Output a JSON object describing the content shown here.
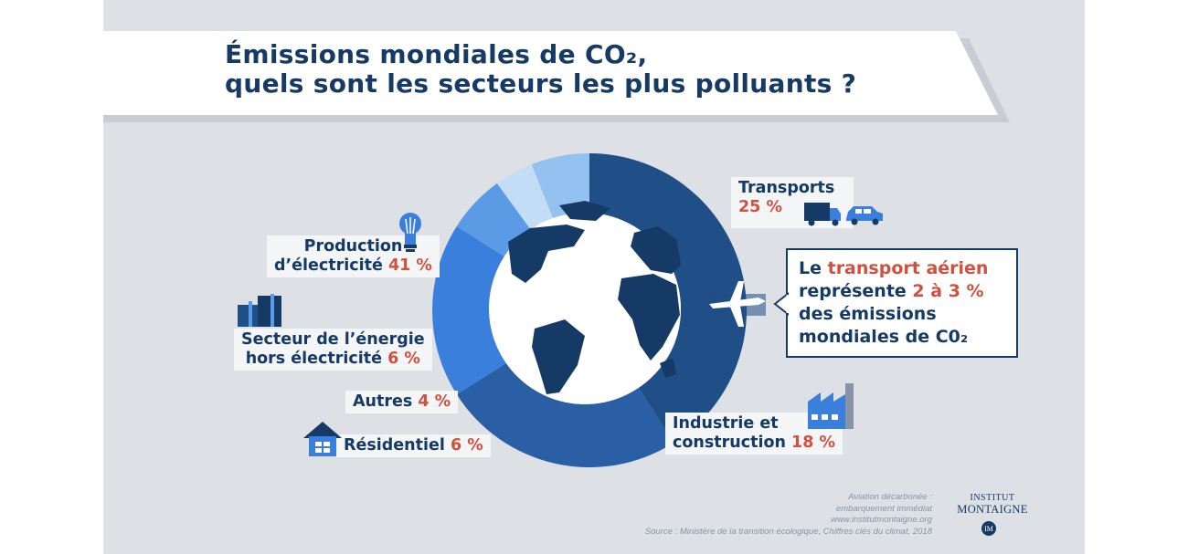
{
  "title": {
    "line1": "Émissions mondiales de CO₂,",
    "line2": "quels sont les secteurs les plus polluants ?"
  },
  "chart_data": {
    "type": "pie",
    "variant": "donut",
    "unit": "%",
    "slices": [
      {
        "key": "production",
        "label": "Production d’électricité",
        "value": 41,
        "color": "#1f4f86"
      },
      {
        "key": "transports",
        "label": "Transports",
        "value": 25,
        "color": "#2a5fa5"
      },
      {
        "key": "industrie",
        "label": "Industrie et construction",
        "value": 18,
        "color": "#3b7fdc"
      },
      {
        "key": "residentiel",
        "label": "Résidentiel",
        "value": 6,
        "color": "#5b9be6"
      },
      {
        "key": "autres",
        "label": "Autres",
        "value": 4,
        "color": "#c3ddf6"
      },
      {
        "key": "energie",
        "label": "Secteur de l’énergie hors électricité",
        "value": 6,
        "color": "#93c2f0"
      }
    ]
  },
  "labels": {
    "production": {
      "line1": "Production",
      "line2": "d’électricité",
      "pct": "41 %"
    },
    "transports": {
      "line1": "Transports",
      "pct": "25 %"
    },
    "energie": {
      "line1": "Secteur de l’énergie",
      "line2": "hors électricité",
      "pct": "6 %"
    },
    "autres": {
      "line1": "Autres",
      "pct": "4 %"
    },
    "residentiel": {
      "line1": "Résidentiel",
      "pct": "6 %"
    },
    "industrie": {
      "line1": "Industrie et",
      "line2": "construction",
      "pct": "18 %"
    }
  },
  "callout": {
    "t1": "Le ",
    "t2": "transport aérien",
    "t3": "représente ",
    "t4": "2 à 3 %",
    "t5": "des émissions",
    "t6": "mondiales de C0₂"
  },
  "source": {
    "line1": "Aviation décarbonée :",
    "line2": "embarquement immédiat",
    "line3": "www.institutmontaigne.org",
    "line4": "Source : Ministère de la transition écologique, Chiffres clés du climat, 2018"
  },
  "logo": {
    "line1": "INSTITUT",
    "line2": "MONTAIGNE",
    "monogram": "IM"
  },
  "icons": [
    "lightbulb-icon",
    "truck-icon",
    "car-icon",
    "plane-icon",
    "factory-icon",
    "house-icon",
    "refinery-icon",
    "globe-icon"
  ]
}
